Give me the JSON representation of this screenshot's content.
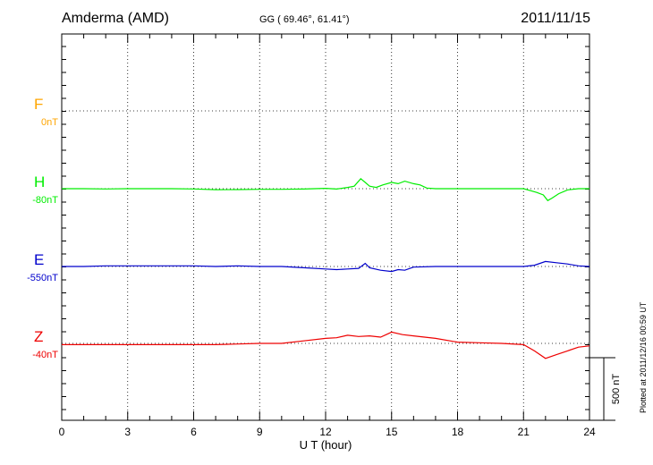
{
  "header": {
    "station": "Amderma (AMD)",
    "coords": "GG ( 69.46°,  61.41°)",
    "date": "2011/11/15"
  },
  "footer": {
    "plotted": "Plotted at 2011/12/16 00:59 UT"
  },
  "chart_data": {
    "type": "line",
    "title": "Amderma (AMD)",
    "xlabel": "U T (hour)",
    "ylabel": "",
    "xlim": [
      0,
      24
    ],
    "xticks": [
      0,
      3,
      6,
      9,
      12,
      15,
      18,
      21,
      24
    ],
    "x_tick_labels": [
      "0",
      "3",
      "6",
      "9",
      "12",
      "15",
      "18",
      "21",
      "24"
    ],
    "grid": true,
    "scale_bar": {
      "value": 500,
      "label": "500 nT"
    },
    "series": [
      {
        "name": "F",
        "baseline_label": "0nT",
        "color": "#ffa500",
        "x": [],
        "y": []
      },
      {
        "name": "H",
        "baseline_label": "-80nT",
        "color": "#00ee00",
        "x": [
          0,
          1,
          2,
          3,
          4,
          5,
          6,
          7,
          8,
          9,
          10,
          11,
          11.5,
          12,
          12.5,
          13,
          13.3,
          13.6,
          13.8,
          14,
          14.3,
          14.6,
          15,
          15.3,
          15.6,
          16,
          16.3,
          16.6,
          17,
          17.5,
          18,
          19,
          20,
          21,
          21.3,
          21.6,
          21.9,
          22.1,
          22.3,
          22.6,
          23,
          23.5,
          24
        ],
        "y": [
          0,
          0,
          -2,
          0,
          0,
          0,
          -2,
          -8,
          -7,
          -5,
          -5,
          -3,
          0,
          3,
          -3,
          10,
          20,
          80,
          50,
          20,
          10,
          30,
          50,
          40,
          60,
          40,
          30,
          5,
          0,
          0,
          0,
          0,
          0,
          0,
          -15,
          -30,
          -50,
          -95,
          -75,
          -40,
          -10,
          0,
          0
        ]
      },
      {
        "name": "E",
        "baseline_label": "-550nT",
        "color": "#0000cc",
        "x": [
          0,
          1,
          2,
          3,
          4,
          5,
          6,
          7,
          8,
          9,
          10,
          11,
          12,
          12.5,
          13,
          13.5,
          13.8,
          14,
          14.5,
          15,
          15.3,
          15.6,
          16,
          17,
          18,
          19,
          20,
          21,
          21.5,
          22,
          22.5,
          23,
          23.5,
          24
        ],
        "y": [
          0,
          0,
          5,
          5,
          5,
          5,
          5,
          0,
          5,
          0,
          0,
          -10,
          -20,
          -25,
          -20,
          -15,
          25,
          -10,
          -30,
          -40,
          -25,
          -30,
          -5,
          0,
          0,
          0,
          0,
          0,
          10,
          40,
          30,
          20,
          5,
          0
        ]
      },
      {
        "name": "Z",
        "baseline_label": "-40nT",
        "color": "#ee0000",
        "x": [
          0,
          1,
          2,
          3,
          4,
          5,
          6,
          7,
          8,
          9,
          10,
          11,
          12,
          12.5,
          13,
          13.5,
          14,
          14.5,
          15,
          15.5,
          16,
          17,
          18,
          19,
          20,
          21,
          21.5,
          22,
          22.5,
          23,
          23.5,
          24
        ],
        "y": [
          -10,
          -10,
          -10,
          -10,
          -10,
          -10,
          -10,
          -10,
          -5,
          0,
          0,
          20,
          40,
          45,
          65,
          55,
          60,
          50,
          90,
          70,
          60,
          40,
          10,
          5,
          0,
          -10,
          -60,
          -120,
          -90,
          -60,
          -30,
          -20
        ]
      }
    ]
  }
}
